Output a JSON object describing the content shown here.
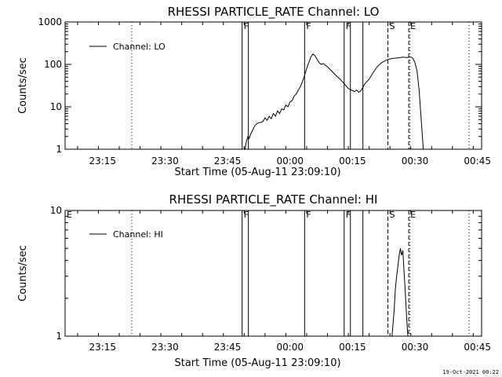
{
  "chart_data": [
    {
      "type": "line",
      "title": "RHESSI PARTICLE_RATE Channel: LO",
      "xlabel": "Start Time (05-Aug-11 23:09:10)",
      "ylabel": "Counts/sec",
      "yscale": "log",
      "ylim": [
        1,
        1000
      ],
      "yticks": [
        1,
        10,
        100,
        1000
      ],
      "yticklabels": [
        "1",
        "10",
        "100",
        "1000"
      ],
      "xlim": [
        -3,
        97
      ],
      "xticks": [
        6,
        21,
        36,
        51,
        66,
        81,
        96
      ],
      "xticklabels": [
        "23:15",
        "23:30",
        "23:45",
        "00:00",
        "00:15",
        "00:30",
        "00:45"
      ],
      "legend": {
        "position": "top-left",
        "entries": [
          "Channel: LO"
        ]
      },
      "grid": false,
      "series": [
        {
          "name": "Channel: LO",
          "x": [
            40.2,
            40.5,
            40.9,
            41.2,
            41.5,
            42,
            42.5,
            43,
            43.5,
            44,
            44.5,
            45,
            45.5,
            46,
            46.5,
            47,
            47.5,
            48,
            48.5,
            49,
            49.5,
            50,
            50.5,
            51,
            51.5,
            52,
            52.5,
            53,
            53.5,
            54,
            54.5,
            55,
            55.5,
            56,
            56.5,
            57,
            57.5,
            58,
            58.5,
            59,
            59.5,
            60,
            61,
            62,
            63,
            64,
            65,
            66,
            66.5,
            67,
            67.5,
            68,
            69,
            70,
            71,
            72,
            73,
            74,
            75,
            76,
            77,
            78,
            79,
            80,
            80.5,
            81,
            81.5,
            82,
            82.5,
            83
          ],
          "values": [
            1,
            1.5,
            2,
            1.8,
            2.2,
            2.8,
            3.5,
            4,
            4.2,
            4.3,
            4.5,
            5.5,
            4.8,
            6,
            5.2,
            7,
            6,
            8,
            7,
            9,
            8.5,
            11,
            10,
            13,
            14,
            18,
            20,
            25,
            30,
            40,
            55,
            80,
            110,
            150,
            175,
            160,
            130,
            110,
            100,
            105,
            95,
            88,
            70,
            55,
            45,
            35,
            27,
            24,
            23,
            25,
            22,
            24,
            35,
            45,
            65,
            90,
            110,
            125,
            135,
            140,
            142,
            148,
            145,
            150,
            140,
            110,
            70,
            25,
            5,
            1
          ]
        }
      ],
      "markers": [
        {
          "label": "F",
          "x": 39.5,
          "style": "solid",
          "show_label": true
        },
        {
          "label": "F",
          "x": 41,
          "style": "solid",
          "show_label": false
        },
        {
          "label": "F",
          "x": 54.5,
          "style": "solid",
          "show_label": true
        },
        {
          "label": "F",
          "x": 64,
          "style": "solid",
          "show_label": true
        },
        {
          "label": "F",
          "x": 65.5,
          "style": "solid",
          "show_label": false
        },
        {
          "label": "F",
          "x": 68.5,
          "style": "solid",
          "show_label": false
        },
        {
          "label": "S",
          "x": 74.5,
          "style": "dashed",
          "show_label": true
        },
        {
          "label": "E",
          "x": 79.5,
          "style": "dashed",
          "show_label": true
        },
        {
          "label": "",
          "x": 13,
          "style": "dotted",
          "show_label": false
        },
        {
          "label": "",
          "x": 79.8,
          "style": "dotted",
          "show_label": false
        },
        {
          "label": "",
          "x": 94,
          "style": "dotted",
          "show_label": false
        }
      ]
    },
    {
      "type": "line",
      "title": "RHESSI PARTICLE_RATE Channel: HI",
      "xlabel": "Start Time (05-Aug-11 23:09:10)",
      "ylabel": "Counts/sec",
      "yscale": "log",
      "ylim": [
        1,
        10
      ],
      "yticks": [
        1,
        10
      ],
      "yticklabels": [
        "1",
        "10"
      ],
      "xlim": [
        -3,
        97
      ],
      "xticks": [
        6,
        21,
        36,
        51,
        66,
        81,
        96
      ],
      "xticklabels": [
        "23:15",
        "23:30",
        "23:45",
        "00:00",
        "00:15",
        "00:30",
        "00:45"
      ],
      "legend": {
        "position": "top-left",
        "entries": [
          "Channel: HI"
        ]
      },
      "grid": false,
      "series": [
        {
          "name": "Channel: HI",
          "x": [
            75.5,
            76,
            76.3,
            76.6,
            76.9,
            77.2,
            77.5,
            77.8,
            78.1,
            78.4,
            78.7,
            79,
            79.3
          ],
          "values": [
            1,
            1.6,
            2.4,
            3,
            3.6,
            4.4,
            5,
            4.4,
            4.8,
            3.2,
            2.2,
            1.4,
            1
          ]
        }
      ],
      "markers": [
        {
          "label": "E",
          "x": -3,
          "style": "none",
          "show_label": true
        },
        {
          "label": "F",
          "x": 39.5,
          "style": "solid",
          "show_label": true
        },
        {
          "label": "F",
          "x": 41,
          "style": "solid",
          "show_label": false
        },
        {
          "label": "F",
          "x": 54.5,
          "style": "solid",
          "show_label": true
        },
        {
          "label": "F",
          "x": 64,
          "style": "solid",
          "show_label": true
        },
        {
          "label": "F",
          "x": 65.5,
          "style": "solid",
          "show_label": false
        },
        {
          "label": "F",
          "x": 68.5,
          "style": "solid",
          "show_label": false
        },
        {
          "label": "S",
          "x": 74.5,
          "style": "dashed",
          "show_label": true
        },
        {
          "label": "E",
          "x": 79.5,
          "style": "dashed",
          "show_label": true
        },
        {
          "label": "",
          "x": 13,
          "style": "dotted",
          "show_label": false
        },
        {
          "label": "",
          "x": 79.8,
          "style": "dotted",
          "show_label": false
        },
        {
          "label": "",
          "x": 94,
          "style": "dotted",
          "show_label": false
        }
      ]
    }
  ],
  "footer": {
    "timestamp": "19-Oct-2021 00:22"
  }
}
